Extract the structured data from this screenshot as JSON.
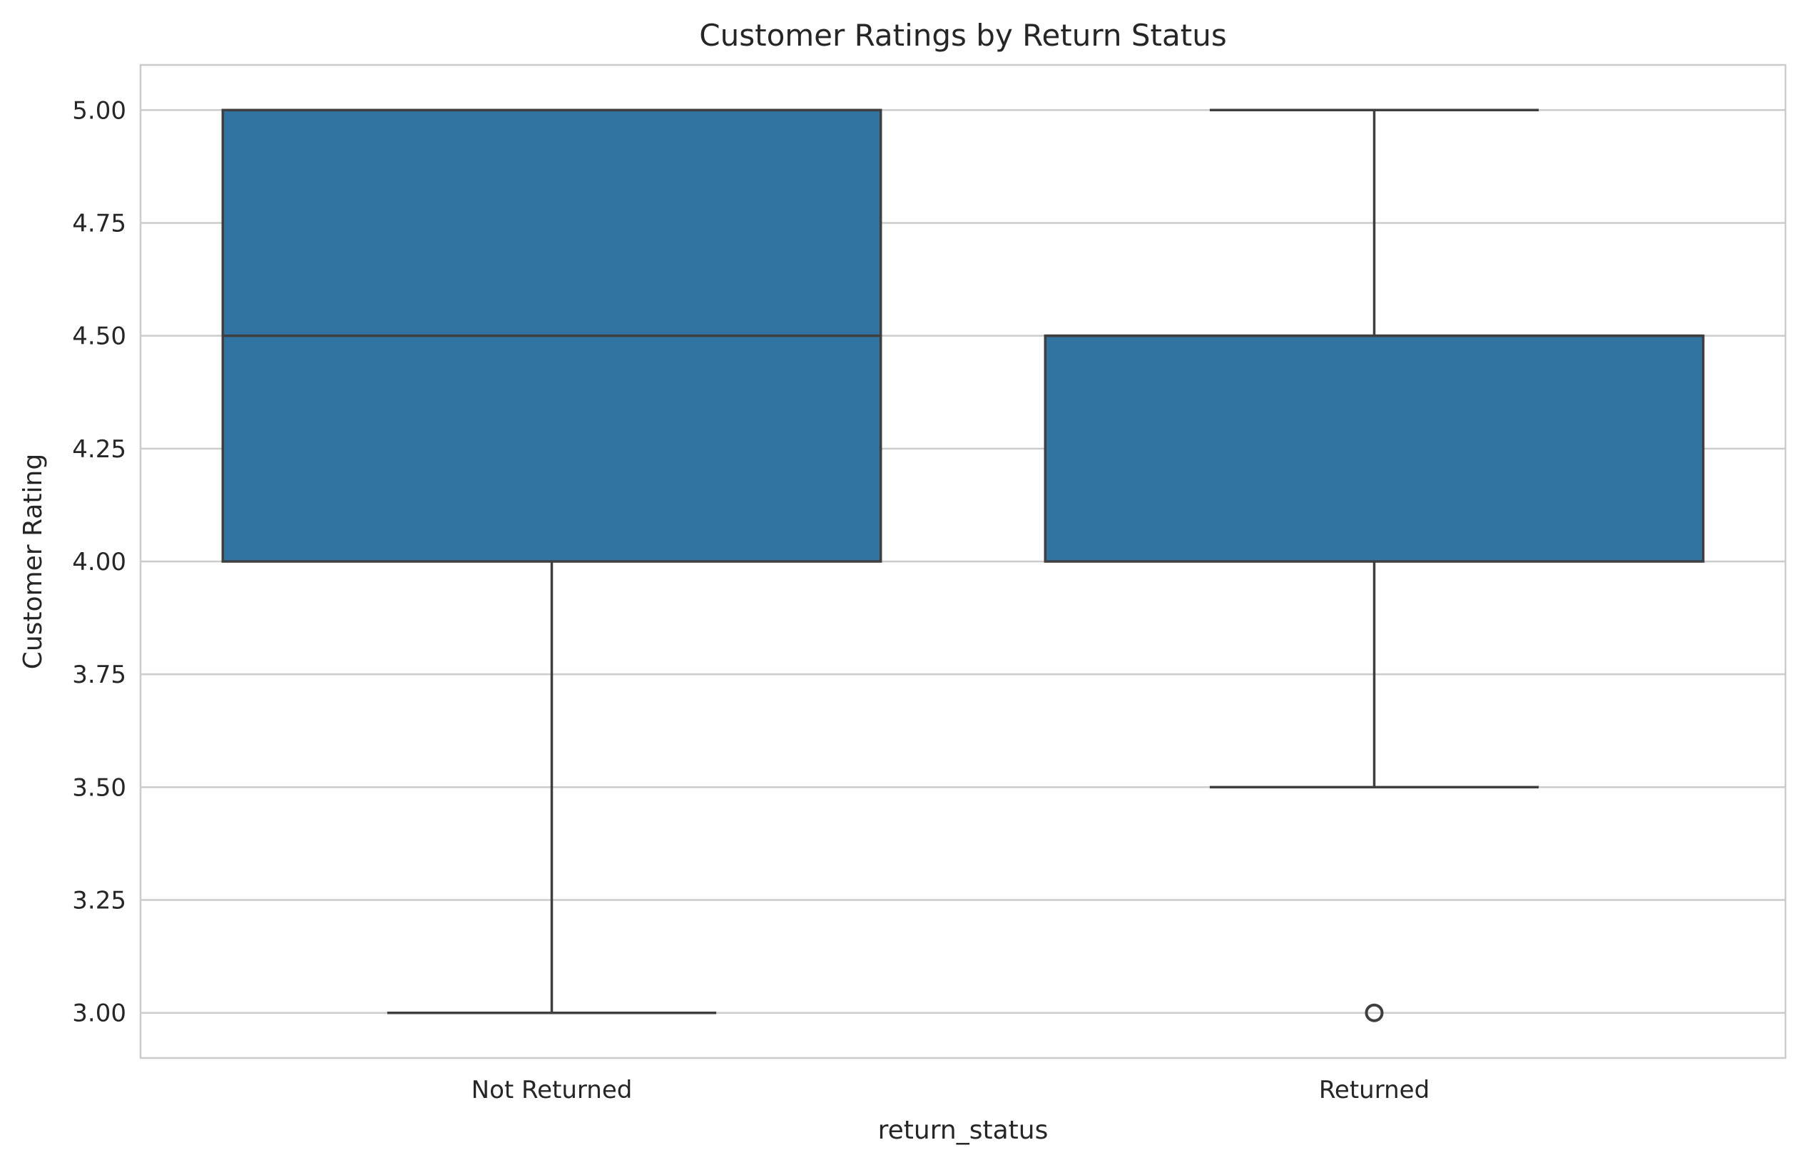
{
  "chart_data": {
    "type": "box",
    "title": "Customer Ratings by Return Status",
    "xlabel": "return_status",
    "ylabel": "Customer Rating",
    "categories": [
      "Not Returned",
      "Returned"
    ],
    "boxes": [
      {
        "category": "Not Returned",
        "whisker_low": 3.0,
        "q1": 4.0,
        "median": 4.5,
        "q3": 5.0,
        "whisker_high": 5.0,
        "outliers": []
      },
      {
        "category": "Returned",
        "whisker_low": 3.5,
        "q1": 4.0,
        "median": 4.5,
        "q3": 4.5,
        "whisker_high": 5.0,
        "outliers": [
          3.0
        ]
      }
    ],
    "ylim": [
      2.9,
      5.1
    ],
    "yticks": [
      "3.00",
      "3.25",
      "3.50",
      "3.75",
      "4.00",
      "4.25",
      "4.50",
      "4.75",
      "5.00"
    ],
    "grid": "horizontal",
    "legend": "none",
    "colors": {
      "box_fill": "#3274a1",
      "box_edge": "#3f3f3f",
      "grid": "#cccccc",
      "frame": "#cccccc",
      "text": "#262626"
    }
  }
}
